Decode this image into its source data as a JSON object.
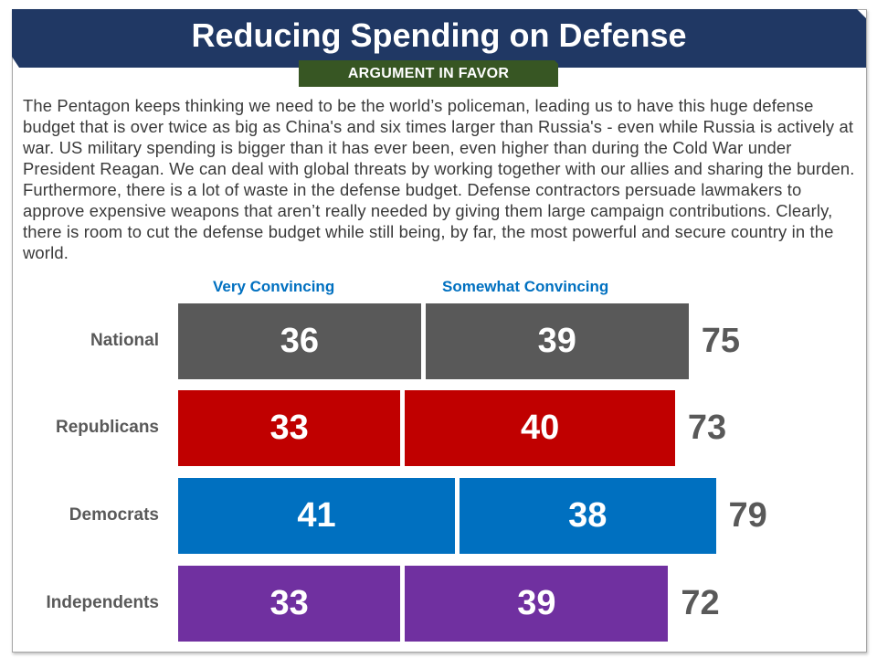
{
  "header": {
    "title": "Reducing Spending on Defense",
    "tag": "ARGUMENT IN FAVOR"
  },
  "argument_text": "The Pentagon keeps thinking we need to be the world’s policeman, leading us to have this huge defense budget that is over twice as big as China's and six times larger than Russia's - even while Russia is actively at war. US military spending is bigger than it has ever been, even higher than during the Cold War under President Reagan. We can deal with global threats by working together with our allies and sharing the burden. Furthermore, there is a lot of waste in the defense budget. Defense contractors persuade lawmakers to approve expensive weapons that aren’t really needed by giving them large campaign contributions. Clearly, there is room to cut the defense budget while still being, by far, the most powerful and secure country in the world.",
  "colors": {
    "banner": "#203864",
    "tag": "#375623",
    "legend_text": "#0070c0",
    "National": "#595959",
    "Republicans": "#c00000",
    "Democrats": "#0070c0",
    "Independents": "#7030a0",
    "total_text": "#595959"
  },
  "chart_data": {
    "type": "bar",
    "orientation": "horizontal",
    "stacked": true,
    "title": "Reducing Spending on Defense",
    "subtitle": "ARGUMENT IN FAVOR",
    "categories": [
      "National",
      "Republicans",
      "Democrats",
      "Independents"
    ],
    "series": [
      {
        "name": "Very Convincing",
        "values": [
          36,
          33,
          41,
          33
        ]
      },
      {
        "name": "Somewhat Convincing",
        "values": [
          39,
          40,
          38,
          39
        ]
      }
    ],
    "totals": [
      75,
      73,
      79,
      72
    ],
    "legend_position": "top",
    "grid": false,
    "xlabel": "",
    "ylabel": ""
  }
}
